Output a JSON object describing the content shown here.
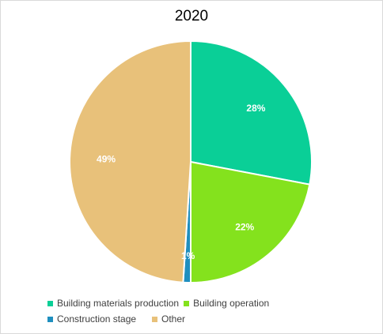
{
  "chart_data": {
    "type": "pie",
    "title": "2020",
    "categories": [
      "Building materials production",
      "Building operation",
      "Construction stage",
      "Other"
    ],
    "values": [
      28,
      22,
      1,
      49
    ],
    "value_labels": [
      "28%",
      "22%",
      "1%",
      "49%"
    ],
    "colors": [
      "#0acf97",
      "#84e21d",
      "#1f8fbf",
      "#e8c17a"
    ],
    "legend_position": "bottom",
    "start_angle_deg": 0,
    "direction": "clockwise"
  }
}
